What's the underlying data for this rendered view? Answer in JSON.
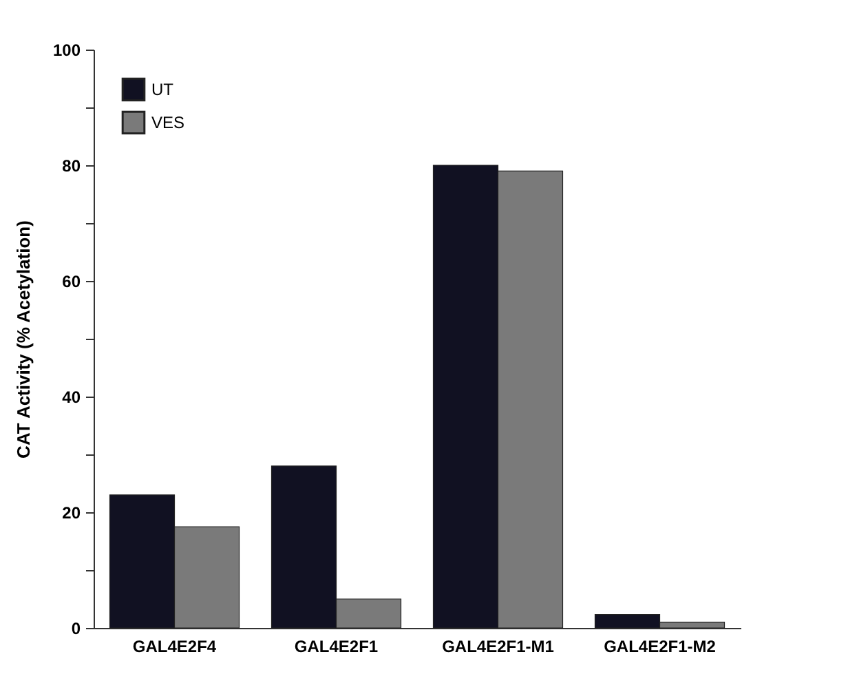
{
  "chart_data": {
    "type": "bar",
    "ylabel": "CAT Activity (% Acetylation)",
    "categories": [
      "GAL4E2F4",
      "GAL4E2F1",
      "GAL4E2F1-M1",
      "GAL4E2F1-M2"
    ],
    "series": [
      {
        "name": "UT",
        "color": "#111122",
        "values": [
          23,
          28,
          80,
          2.3
        ]
      },
      {
        "name": "VES",
        "color": "#7a7a7a",
        "values": [
          17.5,
          5,
          79,
          1
        ]
      }
    ],
    "ylim": [
      0,
      100
    ],
    "yticks": [
      0,
      {
        "value": 10,
        "label": null
      },
      20,
      {
        "value": 30,
        "label": null
      },
      40,
      {
        "value": 50,
        "label": null
      },
      60,
      {
        "value": 70,
        "label": null
      },
      80,
      {
        "value": 90,
        "label": null
      },
      100
    ],
    "grid": false,
    "legend": "top left"
  }
}
